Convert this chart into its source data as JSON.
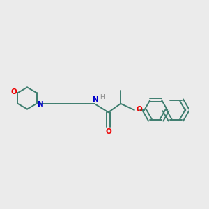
{
  "background_color": "#ebebeb",
  "bond_color": "#3d7d6e",
  "o_color": "#ee0000",
  "n_color": "#0000cc",
  "h_color": "#888888",
  "line_width": 1.4,
  "font_size": 7.5,
  "fig_w": 3.0,
  "fig_h": 3.0,
  "dpi": 100,
  "xlim": [
    0,
    10
  ],
  "ylim": [
    3.0,
    8.0
  ]
}
